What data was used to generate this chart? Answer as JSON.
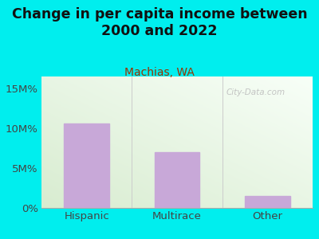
{
  "title": "Change in per capita income between\n2000 and 2022",
  "subtitle": "Machias, WA",
  "categories": [
    "Hispanic",
    "Multirace",
    "Other"
  ],
  "values": [
    10.6,
    7.0,
    1.5
  ],
  "bar_color": "#c8a8d8",
  "title_fontsize": 12.5,
  "subtitle_fontsize": 10,
  "tick_fontsize": 9.5,
  "ylabel_ticks": [
    0,
    5,
    10,
    15
  ],
  "ylabel_labels": [
    "0%",
    "5M%",
    "10M%",
    "15M%"
  ],
  "ylim": [
    0,
    16.5
  ],
  "background_color": "#00EEEE",
  "plot_bg_color_top_left": "#d8ecd0",
  "plot_bg_color_bottom_right": "#f8fff8",
  "title_color": "#111111",
  "subtitle_color": "#993300",
  "tick_color": "#444444",
  "watermark_text": "City-Data.com",
  "watermark_color": "#bbbbbb",
  "divider_color": "#cccccc",
  "bottom_line_color": "#aaaaaa"
}
